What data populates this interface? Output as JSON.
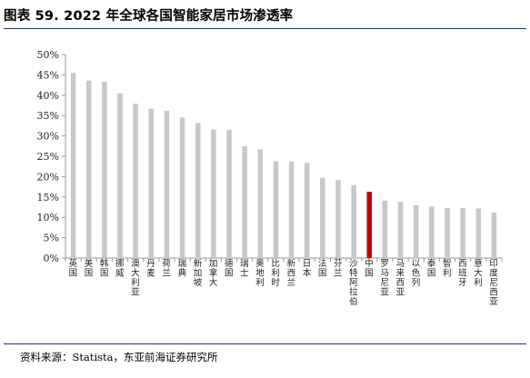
{
  "header": {
    "title": "图表 59. 2022 年全球各国智能家居市场渗透率"
  },
  "footer": {
    "source": "资料来源：Statista，东亚前海证券研究所"
  },
  "colors": {
    "bar_default": "#c8c8c8",
    "bar_highlight": "#c00000",
    "rule": "#1f3864"
  },
  "chart_data": {
    "type": "bar",
    "categories": [
      "英国",
      "美国",
      "韩国",
      "挪威",
      "澳大利亚",
      "丹麦",
      "荷兰",
      "瑞典",
      "新加坡",
      "加拿大",
      "德国",
      "瑞士",
      "奥地利",
      "比利时",
      "新西兰",
      "日本",
      "法国",
      "芬兰",
      "沙特阿拉伯",
      "中国",
      "罗马尼亚",
      "马来西亚",
      "以色列",
      "泰国",
      "智利",
      "西班牙",
      "意大利",
      "印度尼西亚"
    ],
    "values": [
      45.5,
      43.6,
      43.3,
      40.5,
      37.9,
      36.7,
      36.2,
      34.5,
      33.2,
      31.6,
      31.5,
      27.5,
      26.7,
      23.8,
      23.7,
      23.4,
      19.7,
      19.2,
      17.9,
      16.3,
      14.1,
      13.8,
      13.0,
      12.7,
      12.3,
      12.3,
      12.2,
      11.2
    ],
    "highlight": "中国",
    "ylim": [
      0,
      50
    ],
    "yticks": [
      "0%",
      "5%",
      "10%",
      "15%",
      "20%",
      "25%",
      "30%",
      "35%",
      "40%",
      "45%",
      "50%"
    ],
    "grid": false,
    "legend": "none"
  }
}
